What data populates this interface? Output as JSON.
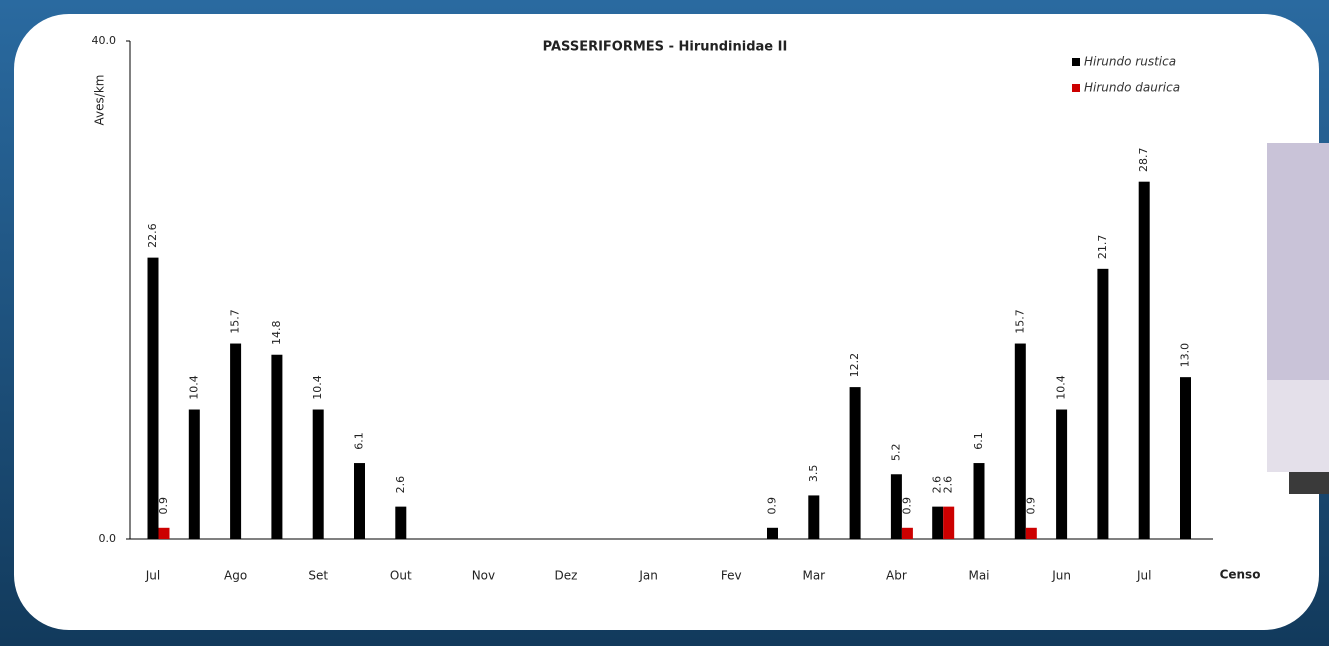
{
  "chart_data": {
    "type": "bar",
    "title": "PASSERIFORMES - Hirundinidae II",
    "y_label": "Aves/km",
    "x_label": "Censo",
    "categories": [
      "Jul",
      null,
      "Ago",
      null,
      "Set",
      null,
      "Out",
      null,
      "Nov",
      null,
      "Dez",
      null,
      "Jan",
      null,
      "Fev",
      null,
      "Mar",
      null,
      "Abr",
      null,
      "Mai",
      null,
      "Jun",
      null,
      "Jul",
      null
    ],
    "series": [
      {
        "name": "Hirundo rustica",
        "color": "#000000",
        "values": [
          22.6,
          10.4,
          15.7,
          14.8,
          10.4,
          6.1,
          2.6,
          null,
          null,
          null,
          null,
          null,
          null,
          null,
          null,
          0.9,
          3.5,
          12.2,
          5.2,
          2.6,
          6.1,
          15.7,
          10.4,
          21.7,
          28.7,
          13
        ],
        "value_labels": [
          "22.6",
          "10.4",
          "15.7",
          "14.8",
          "10.4",
          "6.1",
          "2.6",
          null,
          null,
          null,
          null,
          null,
          null,
          null,
          null,
          "0.9",
          "3.5",
          "12.2",
          "5.2",
          "2.6",
          "6.1",
          "15.7",
          "10.4",
          "21.7",
          "28.7",
          "13.0"
        ]
      },
      {
        "name": "Hirundo daurica",
        "color": "#cc0000",
        "values": [
          0.9,
          null,
          null,
          null,
          null,
          null,
          null,
          null,
          null,
          null,
          null,
          null,
          null,
          null,
          null,
          null,
          null,
          null,
          0.9,
          2.6,
          null,
          0.9,
          null,
          null,
          null,
          null
        ],
        "value_labels": [
          "0.9",
          null,
          null,
          null,
          null,
          null,
          null,
          null,
          null,
          null,
          null,
          null,
          null,
          null,
          null,
          null,
          null,
          null,
          "0.9",
          "2.6",
          null,
          "0.9",
          null,
          null,
          null,
          null
        ]
      }
    ],
    "ylim": [
      0,
      40
    ],
    "yticks": [
      {
        "value": 0,
        "label": "0.0"
      },
      {
        "value": 40,
        "label": "40.0"
      }
    ],
    "legend": "top-right"
  }
}
